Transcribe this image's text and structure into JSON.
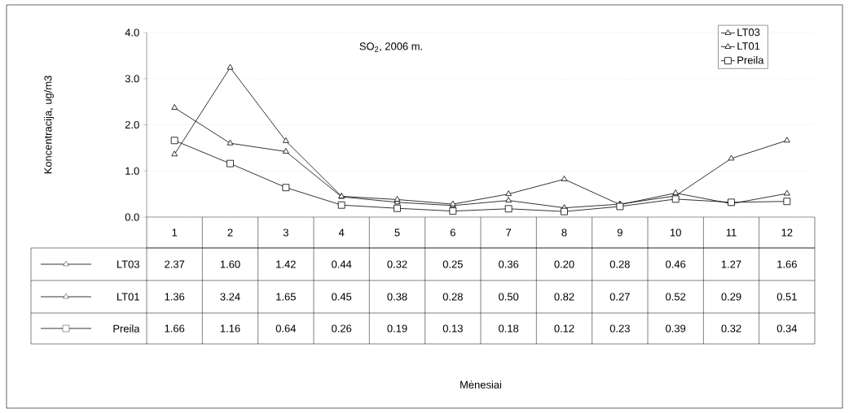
{
  "chart_data": {
    "type": "line",
    "title": "SO$_{2}$, 2006 m.",
    "annotations": [
      "Koncentracija, ug/m3",
      "Mėnesiai"
    ],
    "categories": [
      "1",
      "2",
      "3",
      "4",
      "5",
      "6",
      "7",
      "8",
      "9",
      "10",
      "11",
      "12"
    ],
    "series": [
      {
        "name": "LT03",
        "color": "#000000",
        "marker": "triangle",
        "values": [
          2.37,
          1.6,
          1.42,
          0.44,
          0.32,
          0.25,
          0.36,
          0.2,
          0.28,
          0.46,
          1.27,
          1.66
        ],
        "value_labels": [
          "2.37",
          "1.60",
          "1.42",
          "0.44",
          "0.32",
          "0.25",
          "0.36",
          "0.20",
          "0.28",
          "0.46",
          "1.27",
          "1.66"
        ]
      },
      {
        "name": "LT01",
        "color": "#000000",
        "marker": "triangle",
        "values": [
          1.36,
          3.24,
          1.65,
          0.45,
          0.38,
          0.28,
          0.5,
          0.82,
          0.27,
          0.52,
          0.29,
          0.51
        ],
        "value_labels": [
          "1.36",
          "3.24",
          "1.65",
          "0.45",
          "0.38",
          "0.28",
          "0.50",
          "0.82",
          "0.27",
          "0.52",
          "0.29",
          "0.51"
        ]
      },
      {
        "name": "Preila",
        "color": "#000000",
        "marker": "square",
        "values": [
          1.66,
          1.16,
          0.64,
          0.26,
          0.19,
          0.13,
          0.18,
          0.12,
          0.23,
          0.39,
          0.32,
          0.34
        ],
        "value_labels": [
          "1.66",
          "1.16",
          "0.64",
          "0.26",
          "0.19",
          "0.13",
          "0.18",
          "0.12",
          "0.23",
          "0.39",
          "0.32",
          "0.34"
        ]
      }
    ],
    "ylim": [
      0,
      4
    ],
    "yticks": [
      {
        "value": 0,
        "label": "0.0"
      },
      {
        "value": 1,
        "label": "1.0"
      },
      {
        "value": 2,
        "label": "2.0"
      },
      {
        "value": 3,
        "label": "3.0"
      },
      {
        "value": 4,
        "label": "4.0"
      }
    ],
    "grid": "y",
    "legend": "top right",
    "line_style": "solid"
  }
}
